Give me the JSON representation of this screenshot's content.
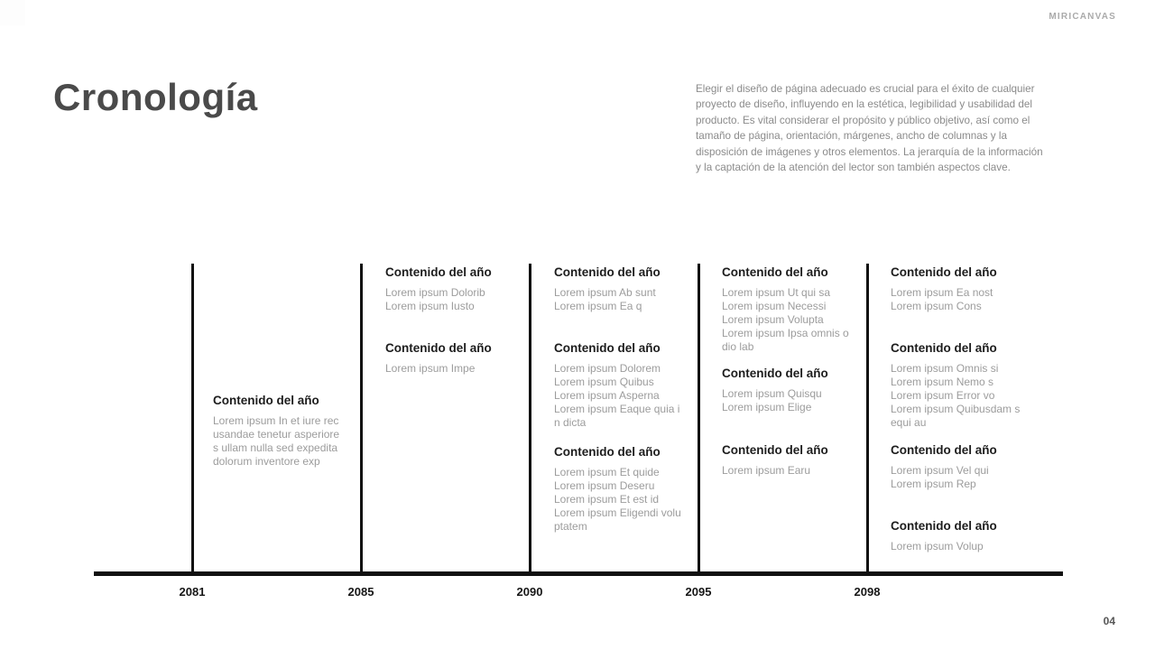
{
  "header": {
    "brand": "MIRICANVAS",
    "title": "Cronología",
    "description": "Elegir el diseño de página adecuado es crucial para el éxito de cualquier\nproyecto de diseño, influyendo en la estética, legibilidad y usabilidad del\nproducto. Es vital considerar el propósito y público objetivo, así como el\ntamaño de página, orientación, márgenes, ancho de columnas y la\ndisposición de imágenes y otros elementos. La jerarquía de la información\ny la captación de la atención del lector son también aspectos clave."
  },
  "timeline": {
    "columns": [
      {
        "year": "2081",
        "blocks": [
          {
            "title": "Contenido del año",
            "body": "Lorem ipsum In et iure rec\nusandae tenetur asperiore\ns ullam nulla sed expedita\ndolorum inventore exp"
          }
        ]
      },
      {
        "year": "2085",
        "blocks": [
          {
            "title": "Contenido del año",
            "body": "Lorem ipsum Dolorib\nLorem ipsum Iusto"
          },
          {
            "title": "Contenido del año",
            "body": "Lorem ipsum Impe"
          }
        ]
      },
      {
        "year": "2090",
        "blocks": [
          {
            "title": "Contenido del año",
            "body": "Lorem ipsum Ab sunt\nLorem ipsum Ea q"
          },
          {
            "title": "Contenido del año",
            "body": "Lorem ipsum Dolorem\nLorem ipsum Quibus\nLorem ipsum Asperna\nLorem ipsum Eaque quia i\nn dicta"
          },
          {
            "title": "Contenido del año",
            "body": "Lorem ipsum Et quide\nLorem ipsum Deseru\nLorem ipsum Et est id\nLorem ipsum Eligendi volu\nptatem"
          }
        ]
      },
      {
        "year": "2095",
        "blocks": [
          {
            "title": "Contenido del año",
            "body": "Lorem ipsum Ut qui sa\nLorem ipsum Necessi\nLorem ipsum Volupta\nLorem ipsum Ipsa omnis o\ndio lab"
          },
          {
            "title": "Contenido del año",
            "body": "Lorem ipsum Quisqu\nLorem ipsum Elige"
          },
          {
            "title": "Contenido del año",
            "body": "Lorem ipsum Earu"
          }
        ]
      },
      {
        "year": "2098",
        "blocks": [
          {
            "title": "Contenido del año",
            "body": "Lorem ipsum Ea nost\nLorem ipsum Cons"
          },
          {
            "title": "Contenido del año",
            "body": "Lorem ipsum Omnis si\nLorem ipsum Nemo s\nLorem ipsum Error vo\nLorem ipsum Quibusdam s\nequi au"
          },
          {
            "title": "Contenido del año",
            "body": "Lorem ipsum Vel qui\nLorem ipsum Rep"
          },
          {
            "title": "Contenido del año",
            "body": "Lorem ipsum Volup"
          }
        ]
      }
    ]
  },
  "footer": {
    "page_number": "04"
  },
  "colors": {
    "title_text": "#4a4a4a",
    "brand_text": "#ababab",
    "paragraph_text": "#8b8b8b",
    "entry_title_text": "#1d1d1d",
    "entry_body_text": "#9c9c9c",
    "timeline_line": "#111111",
    "year_text": "#161616",
    "page_number_text": "#565656"
  }
}
